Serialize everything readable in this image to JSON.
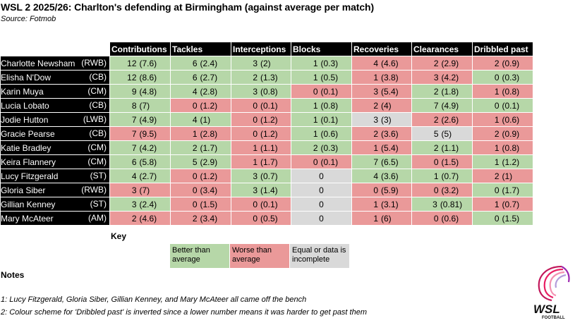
{
  "title": "WSL 2 2025/26: Charlton's defending at Birmingham (against average per match)",
  "source": "Source: Fotmob",
  "columns": [
    "Contributions",
    "Tackles",
    "Interceptions",
    "Blocks",
    "Recoveries",
    "Clearances",
    "Dribbled past"
  ],
  "rows": [
    {
      "name": "Charlotte Newsham",
      "pos": "(RWB)",
      "cells": [
        [
          "12",
          "(7.6)",
          "good"
        ],
        [
          "6",
          "(2.4)",
          "good"
        ],
        [
          "3",
          "(2)",
          "good"
        ],
        [
          "1",
          "(0.3)",
          "good"
        ],
        [
          "4",
          "(4.6)",
          "bad"
        ],
        [
          "2",
          "(2.9)",
          "bad"
        ],
        [
          "2",
          "(0.9)",
          "bad"
        ]
      ]
    },
    {
      "name": "Elisha N'Dow",
      "pos": "(CB)",
      "cells": [
        [
          "12",
          "(8.6)",
          "good"
        ],
        [
          "6",
          "(2.7)",
          "good"
        ],
        [
          "2",
          "(1.3)",
          "good"
        ],
        [
          "1",
          "(0.5)",
          "good"
        ],
        [
          "1",
          "(3.8)",
          "bad"
        ],
        [
          "3",
          "(4.2)",
          "bad"
        ],
        [
          "0",
          "(0.3)",
          "good"
        ]
      ]
    },
    {
      "name": "Karin Muya",
      "pos": "(CM)",
      "cells": [
        [
          "9",
          "(4.8)",
          "good"
        ],
        [
          "4",
          "(2.8)",
          "good"
        ],
        [
          "3",
          "(0.8)",
          "good"
        ],
        [
          "0",
          "(0.1)",
          "bad"
        ],
        [
          "3",
          "(5.4)",
          "bad"
        ],
        [
          "2",
          "(1.8)",
          "good"
        ],
        [
          "1",
          "(0.8)",
          "bad"
        ]
      ]
    },
    {
      "name": "Lucia Lobato",
      "pos": "(CB)",
      "cells": [
        [
          "8",
          "(7)",
          "good"
        ],
        [
          "0",
          "(1.2)",
          "bad"
        ],
        [
          "0",
          "(0.1)",
          "bad"
        ],
        [
          "1",
          "(0.8)",
          "good"
        ],
        [
          "2",
          "(4)",
          "bad"
        ],
        [
          "7",
          "(4.9)",
          "good"
        ],
        [
          "0",
          "(0.1)",
          "good"
        ]
      ]
    },
    {
      "name": "Jodie Hutton",
      "pos": "(LWB)",
      "cells": [
        [
          "7",
          "(4.9)",
          "good"
        ],
        [
          "4",
          "(1)",
          "good"
        ],
        [
          "0",
          "(1.2)",
          "bad"
        ],
        [
          "1",
          "(0.1)",
          "good"
        ],
        [
          "3",
          "(3)",
          "neutral"
        ],
        [
          "2",
          "(2.6)",
          "bad"
        ],
        [
          "1",
          "(0.6)",
          "bad"
        ]
      ]
    },
    {
      "name": "Gracie Pearse",
      "pos": "(CB)",
      "cells": [
        [
          "7",
          "(9.5)",
          "bad"
        ],
        [
          "1",
          "(2.8)",
          "bad"
        ],
        [
          "0",
          "(1.2)",
          "bad"
        ],
        [
          "1",
          "(0.6)",
          "good"
        ],
        [
          "2",
          "(3.6)",
          "bad"
        ],
        [
          "5",
          "(5)",
          "neutral"
        ],
        [
          "2",
          "(0.9)",
          "bad"
        ]
      ]
    },
    {
      "name": "Katie Bradley",
      "pos": "(CM)",
      "cells": [
        [
          "7",
          "(4.2)",
          "good"
        ],
        [
          "2",
          "(1.7)",
          "good"
        ],
        [
          "1",
          "(1.1)",
          "bad"
        ],
        [
          "2",
          "(0.3)",
          "good"
        ],
        [
          "1",
          "(5.4)",
          "bad"
        ],
        [
          "2",
          "(1.1)",
          "good"
        ],
        [
          "1",
          "(0.8)",
          "bad"
        ]
      ]
    },
    {
      "name": "Keira Flannery",
      "pos": "(CM)",
      "cells": [
        [
          "6",
          "(5.8)",
          "good"
        ],
        [
          "5",
          "(2.9)",
          "good"
        ],
        [
          "1",
          "(1.7)",
          "bad"
        ],
        [
          "0",
          "(0.1)",
          "bad"
        ],
        [
          "7",
          "(6.5)",
          "good"
        ],
        [
          "0",
          "(1.5)",
          "bad"
        ],
        [
          "1",
          "(1.2)",
          "good"
        ]
      ]
    },
    {
      "name": "Lucy Fitzgerald",
      "pos": "(ST)",
      "cells": [
        [
          "4",
          "(2.7)",
          "good"
        ],
        [
          "0",
          "(1.2)",
          "bad"
        ],
        [
          "3",
          "(0.7)",
          "good"
        ],
        [
          "0",
          "",
          "neutral"
        ],
        [
          "4",
          "(3.6)",
          "good"
        ],
        [
          "1",
          "(0.7)",
          "good"
        ],
        [
          "2",
          "(1)",
          "bad"
        ]
      ]
    },
    {
      "name": "Gloria Siber",
      "pos": "(RWB)",
      "cells": [
        [
          "3",
          "(7)",
          "bad"
        ],
        [
          "0",
          "(3.4)",
          "bad"
        ],
        [
          "3",
          "(1.4)",
          "good"
        ],
        [
          "0",
          "",
          "neutral"
        ],
        [
          "0",
          "(5.9)",
          "bad"
        ],
        [
          "0",
          "(3.2)",
          "bad"
        ],
        [
          "0",
          "(1.7)",
          "good"
        ]
      ]
    },
    {
      "name": "Gillian Kenney",
      "pos": "(ST)",
      "cells": [
        [
          "3",
          "(2.4)",
          "good"
        ],
        [
          "0",
          "(1.5)",
          "bad"
        ],
        [
          "0",
          "(0.1)",
          "bad"
        ],
        [
          "0",
          "",
          "neutral"
        ],
        [
          "1",
          "(3.1)",
          "bad"
        ],
        [
          "3",
          "(0.81)",
          "good"
        ],
        [
          "1",
          "(0.7)",
          "bad"
        ]
      ]
    },
    {
      "name": "Mary McAteer",
      "pos": "(AM)",
      "cells": [
        [
          "2",
          "(4.6)",
          "bad"
        ],
        [
          "2",
          "(3.4)",
          "bad"
        ],
        [
          "0",
          "(0.5)",
          "bad"
        ],
        [
          "0",
          "",
          "neutral"
        ],
        [
          "1",
          "(6)",
          "bad"
        ],
        [
          "0",
          "(0.6)",
          "bad"
        ],
        [
          "0",
          "(1.5)",
          "good"
        ]
      ]
    }
  ],
  "key": {
    "title": "Key",
    "better": "Better than average",
    "worse": "Worse than average",
    "equal": "Equal or data is incomplete"
  },
  "notes": {
    "title": "Notes",
    "items": [
      "1: Lucy Fitzgerald, Gloria Siber, Gillian Kenney, and Mary McAteer all came off the bench",
      "2: Colour scheme for 'Dribbled past' is inverted since a lower number means it was harder to get past them"
    ]
  },
  "logo": {
    "text": "WSL",
    "subtext": "FOOTBALL"
  },
  "colors": {
    "good": "#b6d7a8",
    "bad": "#ea9999",
    "neutral": "#d9d9d9",
    "header": "#000000"
  }
}
